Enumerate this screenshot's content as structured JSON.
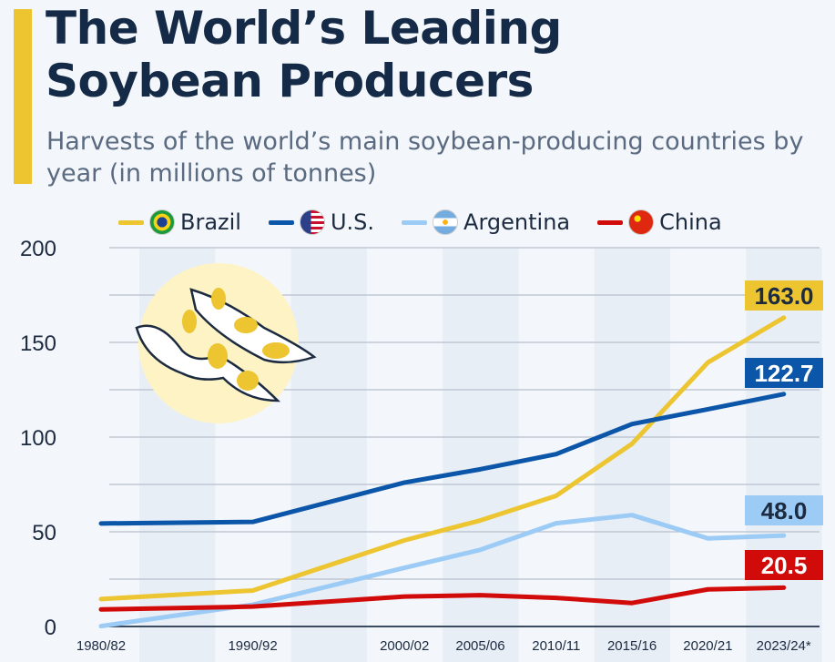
{
  "title": "The World’s Leading Soybean Producers",
  "title_lines": [
    "The World’s Leading",
    "Soybean Producers"
  ],
  "subtitle": "Harvests of the world’s main soybean-producing countries by year (in millions of tonnes)",
  "legend": [
    {
      "name": "Brazil",
      "color": "#ecc531",
      "icon": "brazil-flag-icon"
    },
    {
      "name": "U.S.",
      "color": "#0b56a8",
      "icon": "us-flag-icon"
    },
    {
      "name": "Argentina",
      "color": "#9ccbf5",
      "icon": "argentina-flag-icon"
    },
    {
      "name": "China",
      "color": "#d10a0a",
      "icon": "china-flag-icon"
    }
  ],
  "chart_data": {
    "type": "line",
    "categories": [
      "1980/82",
      "1990/92",
      "2000/02",
      "2005/06",
      "2010/11",
      "2015/16",
      "2020/21",
      "2023/24*"
    ],
    "ylim": [
      0,
      200
    ],
    "yticks": [
      0,
      50,
      100,
      150,
      200
    ],
    "grid": true,
    "legend_position": "top",
    "series": [
      {
        "name": "Brazil",
        "color": "#ecc531",
        "values": [
          14.5,
          19.0,
          45.5,
          56.0,
          69.0,
          96.5,
          139.4,
          163.0
        ],
        "end_label": "163.0",
        "label_text_color": "#1c2b40"
      },
      {
        "name": "U.S.",
        "color": "#0b56a8",
        "values": [
          54.4,
          55.2,
          76.0,
          83.0,
          91.0,
          106.9,
          114.7,
          122.7
        ],
        "end_label": "122.7",
        "label_text_color": "#ffffff"
      },
      {
        "name": "Argentina",
        "color": "#9ccbf5",
        "values": [
          0.2,
          11.5,
          31.0,
          40.5,
          54.5,
          58.8,
          46.5,
          48.0
        ],
        "end_label": "48.0",
        "label_text_color": "#1c2b40"
      },
      {
        "name": "China",
        "color": "#d10a0a",
        "values": [
          9.0,
          10.5,
          15.8,
          16.5,
          15.1,
          12.4,
          19.6,
          20.5
        ],
        "end_label": "20.5",
        "label_text_color": "#ffffff"
      }
    ]
  }
}
